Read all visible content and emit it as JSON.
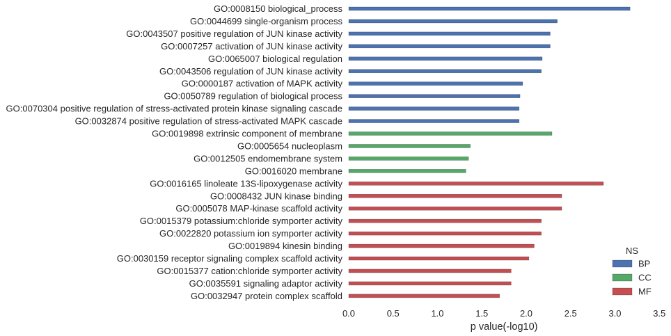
{
  "chart_data": {
    "type": "bar",
    "orientation": "horizontal",
    "title": "",
    "xlabel": "p value(-log10)",
    "ylabel": "",
    "xlim": [
      0,
      3.5
    ],
    "xticks": [
      "0.0",
      "0.5",
      "1.0",
      "1.5",
      "2.0",
      "2.5",
      "3.0",
      "3.5"
    ],
    "grid": false,
    "legend": {
      "title": "NS",
      "placement": "bottom-right",
      "entries": [
        {
          "name": "BP",
          "color": "#4c72b0"
        },
        {
          "name": "CC",
          "color": "#55a868"
        },
        {
          "name": "MF",
          "color": "#c44e52"
        }
      ]
    },
    "bars": [
      {
        "label": "GO:0008150 biological_process",
        "value": 3.17,
        "ns": "BP"
      },
      {
        "label": "GO:0044699 single-organism process",
        "value": 2.35,
        "ns": "BP"
      },
      {
        "label": "GO:0043507 positive regulation of JUN kinase activity",
        "value": 2.27,
        "ns": "BP"
      },
      {
        "label": "GO:0007257 activation of JUN kinase activity",
        "value": 2.27,
        "ns": "BP"
      },
      {
        "label": "GO:0065007 biological regulation",
        "value": 2.18,
        "ns": "BP"
      },
      {
        "label": "GO:0043506 regulation of JUN kinase activity",
        "value": 2.17,
        "ns": "BP"
      },
      {
        "label": "GO:0000187 activation of MAPK activity",
        "value": 1.96,
        "ns": "BP"
      },
      {
        "label": "GO:0050789 regulation of biological process",
        "value": 1.93,
        "ns": "BP"
      },
      {
        "label": "GO:0070304 positive regulation of stress-activated protein kinase signaling cascade",
        "value": 1.92,
        "ns": "BP"
      },
      {
        "label": "GO:0032874 positive regulation of stress-activated MAPK cascade",
        "value": 1.92,
        "ns": "BP"
      },
      {
        "label": "GO:0019898 extrinsic component of membrane",
        "value": 2.29,
        "ns": "CC"
      },
      {
        "label": "GO:0005654 nucleoplasm",
        "value": 1.37,
        "ns": "CC"
      },
      {
        "label": "GO:0012505 endomembrane system",
        "value": 1.35,
        "ns": "CC"
      },
      {
        "label": "GO:0016020 membrane",
        "value": 1.32,
        "ns": "CC"
      },
      {
        "label": "GO:0016165 linoleate 13S-lipoxygenase activity",
        "value": 2.87,
        "ns": "MF"
      },
      {
        "label": "GO:0008432 JUN kinase binding",
        "value": 2.4,
        "ns": "MF"
      },
      {
        "label": "GO:0005078 MAP-kinase scaffold activity",
        "value": 2.4,
        "ns": "MF"
      },
      {
        "label": "GO:0015379 potassium:chloride symporter activity",
        "value": 2.17,
        "ns": "MF"
      },
      {
        "label": "GO:0022820 potassium ion symporter activity",
        "value": 2.17,
        "ns": "MF"
      },
      {
        "label": "GO:0019894 kinesin binding",
        "value": 2.09,
        "ns": "MF"
      },
      {
        "label": "GO:0030159 receptor signaling complex scaffold activity",
        "value": 2.03,
        "ns": "MF"
      },
      {
        "label": "GO:0015377 cation:chloride symporter activity",
        "value": 1.83,
        "ns": "MF"
      },
      {
        "label": "GO:0035591 signaling adaptor activity",
        "value": 1.83,
        "ns": "MF"
      },
      {
        "label": "GO:0032947 protein complex scaffold",
        "value": 1.7,
        "ns": "MF"
      }
    ]
  }
}
